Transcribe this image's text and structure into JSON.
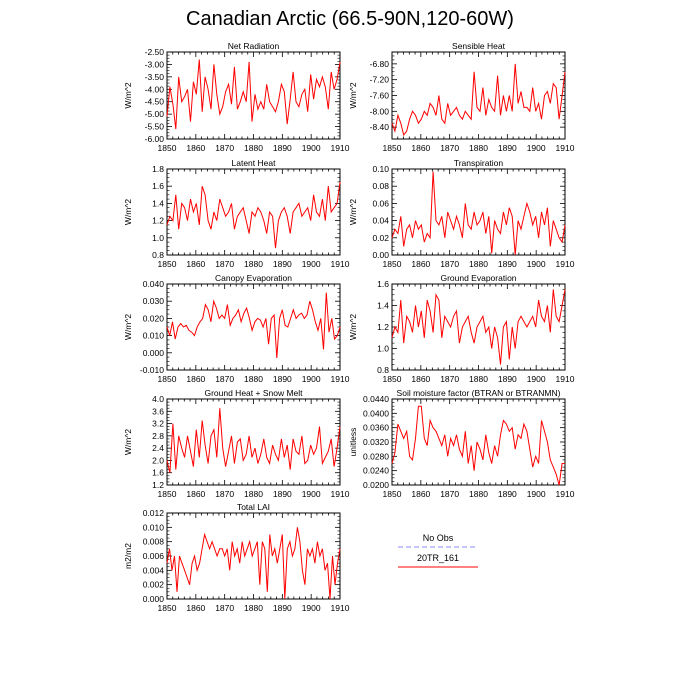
{
  "title": "Canadian Arctic (66.5-90N,120-60W)",
  "legend": {
    "entries": [
      {
        "label": "No Obs",
        "color": "#8c8cff",
        "dash": true
      },
      {
        "label": "20TR_161",
        "color": "#ff0000",
        "dash": false
      }
    ]
  },
  "chart_data": [
    {
      "type": "line",
      "title": "Net Radiation",
      "ylabel": "W/m^2",
      "xlim": [
        1850,
        1910
      ],
      "ylim": [
        -6.0,
        -2.5
      ],
      "xticks": [
        1850,
        1860,
        1870,
        1880,
        1890,
        1900,
        1910
      ],
      "yticks": [
        -6.0,
        -5.5,
        -5.0,
        -4.5,
        -4.0,
        -3.5,
        -3.0,
        -2.5
      ],
      "ytick_labels": [
        "-6.00",
        "-5.50",
        "-5.00",
        "-4.50",
        "-4.00",
        "-3.50",
        "-3.00",
        "-2.50"
      ],
      "x_start": 1850,
      "series": [
        {
          "color": "#ff0000",
          "values": [
            -5.1,
            -3.9,
            -4.6,
            -5.6,
            -3.5,
            -4.5,
            -4.3,
            -4.0,
            -5.3,
            -3.7,
            -4.2,
            -2.8,
            -4.9,
            -3.5,
            -4.0,
            -4.8,
            -3.0,
            -4.2,
            -5.0,
            -4.7,
            -4.1,
            -3.8,
            -4.6,
            -3.1,
            -4.8,
            -4.5,
            -4.1,
            -4.5,
            -2.9,
            -5.3,
            -4.2,
            -4.8,
            -4.5,
            -4.8,
            -3.8,
            -4.5,
            -4.7,
            -4.9,
            -4.5,
            -3.8,
            -4.1,
            -5.4,
            -4.4,
            -3.3,
            -4.5,
            -4.7,
            -4.2,
            -4.0,
            -4.9,
            -3.4,
            -4.4,
            -3.6,
            -3.9,
            -3.5,
            -3.9,
            -4.8,
            -3.3,
            -4.0,
            -3.6,
            -2.9
          ]
        }
      ]
    },
    {
      "type": "line",
      "title": "Sensible Heat",
      "ylabel": "W/m^2",
      "xlim": [
        1850,
        1910
      ],
      "ylim": [
        -8.7,
        -6.5
      ],
      "xticks": [
        1850,
        1860,
        1870,
        1880,
        1890,
        1900,
        1910
      ],
      "yticks": [
        -8.4,
        -8.0,
        -7.6,
        -7.2,
        -6.8
      ],
      "ytick_labels": [
        "-8.40",
        "-8.00",
        "-7.60",
        "-7.20",
        "-6.80"
      ],
      "x_start": 1850,
      "series": [
        {
          "color": "#ff0000",
          "values": [
            -8.3,
            -8.5,
            -8.1,
            -8.3,
            -8.6,
            -8.5,
            -8.2,
            -8.0,
            -8.1,
            -8.3,
            -8.2,
            -8.0,
            -8.1,
            -7.8,
            -7.9,
            -8.1,
            -7.6,
            -8.2,
            -8.3,
            -7.8,
            -8.1,
            -8.0,
            -7.9,
            -8.1,
            -8.2,
            -8.0,
            -8.1,
            -8.2,
            -7.0,
            -7.9,
            -8.0,
            -7.4,
            -8.1,
            -7.7,
            -7.9,
            -8.0,
            -7.1,
            -8.1,
            -7.6,
            -8.0,
            -7.6,
            -8.0,
            -6.8,
            -7.8,
            -7.5,
            -7.9,
            -7.9,
            -8.0,
            -7.4,
            -8.0,
            -7.8,
            -8.2,
            -7.6,
            -7.5,
            -7.8,
            -7.3,
            -7.4,
            -8.2,
            -7.6,
            -7.0
          ]
        }
      ]
    },
    {
      "type": "line",
      "title": "Latent Heat",
      "ylabel": "W/m^2",
      "xlim": [
        1850,
        1910
      ],
      "ylim": [
        0.8,
        1.8
      ],
      "xticks": [
        1850,
        1860,
        1870,
        1880,
        1890,
        1900,
        1910
      ],
      "yticks": [
        0.8,
        1.0,
        1.2,
        1.4,
        1.6,
        1.8
      ],
      "ytick_labels": [
        "0.8",
        "1.0",
        "1.2",
        "1.4",
        "1.6",
        "1.8"
      ],
      "x_start": 1850,
      "series": [
        {
          "color": "#ff0000",
          "values": [
            1.15,
            1.25,
            1.2,
            1.5,
            1.1,
            1.4,
            1.35,
            1.2,
            1.45,
            1.3,
            1.4,
            1.15,
            1.6,
            1.5,
            1.2,
            1.1,
            1.3,
            1.2,
            1.45,
            1.35,
            1.25,
            1.3,
            1.4,
            1.1,
            1.25,
            1.3,
            1.35,
            1.2,
            1.05,
            1.3,
            1.25,
            1.35,
            1.3,
            1.2,
            1.05,
            1.3,
            1.25,
            0.88,
            1.2,
            1.3,
            1.35,
            1.25,
            1.05,
            1.3,
            1.35,
            1.4,
            1.25,
            1.3,
            1.35,
            1.2,
            1.5,
            1.3,
            1.25,
            1.45,
            1.2,
            1.6,
            1.3,
            1.35,
            1.4,
            1.65
          ]
        }
      ]
    },
    {
      "type": "line",
      "title": "Transpiration",
      "ylabel": "W/m^2",
      "xlim": [
        1850,
        1910
      ],
      "ylim": [
        0.0,
        0.1
      ],
      "xticks": [
        1850,
        1860,
        1870,
        1880,
        1890,
        1900,
        1910
      ],
      "yticks": [
        0.0,
        0.02,
        0.04,
        0.06,
        0.08,
        0.1
      ],
      "ytick_labels": [
        "0.00",
        "0.02",
        "0.04",
        "0.06",
        "0.08",
        "0.10"
      ],
      "x_start": 1850,
      "series": [
        {
          "color": "#ff0000",
          "values": [
            0.02,
            0.03,
            0.025,
            0.045,
            0.01,
            0.03,
            0.035,
            0.02,
            0.04,
            0.03,
            0.035,
            0.015,
            0.025,
            0.02,
            0.097,
            0.04,
            0.035,
            0.045,
            0.02,
            0.05,
            0.04,
            0.03,
            0.045,
            0.035,
            0.02,
            0.06,
            0.035,
            0.03,
            0.05,
            0.035,
            0.04,
            0.05,
            0.025,
            0.045,
            0.002,
            0.04,
            0.03,
            0.025,
            0.05,
            0.035,
            0.055,
            0.045,
            0.0,
            0.04,
            0.03,
            0.045,
            0.06,
            0.05,
            0.035,
            0.045,
            0.02,
            0.05,
            0.035,
            0.055,
            0.01,
            0.04,
            0.03,
            0.02,
            0.015,
            0.035
          ]
        }
      ]
    },
    {
      "type": "line",
      "title": "Canopy Evaporation",
      "ylabel": "W/m^2",
      "xlim": [
        1850,
        1910
      ],
      "ylim": [
        -0.01,
        0.04
      ],
      "xticks": [
        1850,
        1860,
        1870,
        1880,
        1890,
        1900,
        1910
      ],
      "yticks": [
        -0.01,
        0.0,
        0.01,
        0.02,
        0.03,
        0.04
      ],
      "ytick_labels": [
        "-0.010",
        "0.000",
        "0.010",
        "0.020",
        "0.030",
        "0.040"
      ],
      "x_start": 1850,
      "series": [
        {
          "color": "#ff0000",
          "values": [
            0.015,
            0.01,
            0.018,
            0.008,
            0.015,
            0.017,
            0.015,
            0.016,
            0.013,
            0.012,
            0.01,
            0.015,
            0.018,
            0.02,
            0.028,
            0.025,
            0.018,
            0.03,
            0.026,
            0.02,
            0.022,
            0.02,
            0.028,
            0.016,
            0.02,
            0.022,
            0.025,
            0.018,
            0.023,
            0.026,
            0.02,
            0.013,
            0.018,
            0.02,
            0.019,
            0.015,
            0.02,
            0.005,
            0.02,
            0.022,
            -0.003,
            0.02,
            0.025,
            0.016,
            0.015,
            0.02,
            0.025,
            0.02,
            0.022,
            0.023,
            0.02,
            0.022,
            0.03,
            0.025,
            0.018,
            0.013,
            0.02,
            0.002,
            0.035,
            0.012,
            0.02,
            0.008,
            0.01,
            0.015
          ]
        }
      ]
    },
    {
      "type": "line",
      "title": "Ground Evaporation",
      "ylabel": "W/m^2",
      "xlim": [
        1850,
        1910
      ],
      "ylim": [
        0.8,
        1.6
      ],
      "xticks": [
        1850,
        1860,
        1870,
        1880,
        1890,
        1900,
        1910
      ],
      "yticks": [
        0.8,
        1.0,
        1.2,
        1.4,
        1.6
      ],
      "ytick_labels": [
        "0.8",
        "1.0",
        "1.2",
        "1.4",
        "1.6"
      ],
      "x_start": 1850,
      "series": [
        {
          "color": "#ff0000",
          "values": [
            1.1,
            1.2,
            1.15,
            1.45,
            1.05,
            1.3,
            1.25,
            1.15,
            1.4,
            1.2,
            1.35,
            1.1,
            1.45,
            1.35,
            1.15,
            1.5,
            1.45,
            1.1,
            1.3,
            1.25,
            1.2,
            1.3,
            1.35,
            1.05,
            1.2,
            1.25,
            1.3,
            1.15,
            1.05,
            1.2,
            1.25,
            1.3,
            1.15,
            1.2,
            1.0,
            1.2,
            1.1,
            0.85,
            1.2,
            1.25,
            0.9,
            1.2,
            1.0,
            1.25,
            1.3,
            1.25,
            1.2,
            1.25,
            1.3,
            1.2,
            1.45,
            1.3,
            1.25,
            1.4,
            1.15,
            1.55,
            1.3,
            1.25,
            1.4,
            1.55
          ]
        }
      ]
    },
    {
      "type": "line",
      "title": "Ground Heat + Snow Melt",
      "ylabel": "W/m^2",
      "xlim": [
        1850,
        1910
      ],
      "ylim": [
        1.2,
        4.0
      ],
      "xticks": [
        1850,
        1860,
        1870,
        1880,
        1890,
        1900,
        1910
      ],
      "yticks": [
        1.2,
        1.6,
        2.0,
        2.4,
        2.8,
        3.2,
        3.6,
        4.0
      ],
      "ytick_labels": [
        "1.2",
        "1.6",
        "2.0",
        "2.4",
        "2.8",
        "3.2",
        "3.6",
        "4.0"
      ],
      "x_start": 1850,
      "series": [
        {
          "color": "#ff0000",
          "values": [
            2.0,
            1.6,
            3.2,
            1.7,
            2.8,
            2.4,
            2.1,
            2.8,
            2.3,
            1.8,
            3.0,
            2.1,
            3.3,
            2.5,
            1.9,
            2.8,
            3.0,
            2.1,
            3.7,
            2.4,
            1.8,
            2.3,
            2.8,
            1.9,
            2.6,
            2.7,
            2.0,
            2.2,
            2.8,
            2.1,
            2.4,
            1.9,
            2.2,
            2.7,
            2.1,
            1.9,
            2.5,
            2.2,
            2.0,
            2.7,
            2.1,
            2.5,
            1.7,
            2.7,
            2.3,
            2.2,
            2.8,
            1.9,
            2.0,
            2.5,
            2.2,
            2.4,
            3.1,
            1.9,
            2.1,
            2.3,
            2.7,
            1.8,
            2.4,
            3.1
          ]
        }
      ]
    },
    {
      "type": "line",
      "title": "Soil moisture factor (BTRAN or BTRANMN)",
      "ylabel": "unitless",
      "xlim": [
        1850,
        1910
      ],
      "ylim": [
        0.02,
        0.044
      ],
      "xticks": [
        1850,
        1860,
        1870,
        1880,
        1890,
        1900,
        1910
      ],
      "yticks": [
        0.02,
        0.024,
        0.028,
        0.032,
        0.036,
        0.04,
        0.044
      ],
      "ytick_labels": [
        "0.0200",
        "0.0240",
        "0.0280",
        "0.0320",
        "0.0360",
        "0.0400",
        "0.0440"
      ],
      "x_start": 1850,
      "series": [
        {
          "color": "#ff0000",
          "values": [
            0.026,
            0.029,
            0.037,
            0.035,
            0.033,
            0.035,
            0.028,
            0.027,
            0.033,
            0.042,
            0.042,
            0.033,
            0.031,
            0.038,
            0.036,
            0.035,
            0.033,
            0.031,
            0.034,
            0.028,
            0.033,
            0.031,
            0.034,
            0.03,
            0.028,
            0.035,
            0.026,
            0.031,
            0.024,
            0.032,
            0.03,
            0.027,
            0.034,
            0.029,
            0.026,
            0.031,
            0.028,
            0.034,
            0.038,
            0.037,
            0.035,
            0.036,
            0.03,
            0.034,
            0.033,
            0.037,
            0.035,
            0.03,
            0.025,
            0.028,
            0.026,
            0.038,
            0.035,
            0.032,
            0.027,
            0.025,
            0.023,
            0.02,
            0.026,
            0.026
          ]
        }
      ]
    },
    {
      "type": "line",
      "title": "Total LAI",
      "ylabel": "m2/m2",
      "xlim": [
        1850,
        1910
      ],
      "ylim": [
        0.0,
        0.012
      ],
      "xticks": [
        1850,
        1860,
        1870,
        1880,
        1890,
        1900,
        1910
      ],
      "yticks": [
        0.0,
        0.002,
        0.004,
        0.006,
        0.008,
        0.01,
        0.012
      ],
      "ytick_labels": [
        "0.000",
        "0.002",
        "0.004",
        "0.006",
        "0.008",
        "0.010",
        "0.012"
      ],
      "x_start": 1850,
      "series": [
        {
          "color": "#ff0000",
          "values": [
            0.005,
            0.007,
            0.004,
            0.006,
            0.001,
            0.006,
            0.005,
            0.004,
            0.003,
            0.002,
            0.005,
            0.006,
            0.004,
            0.005,
            0.007,
            0.009,
            0.008,
            0.007,
            0.008,
            0.007,
            0.006,
            0.007,
            0.007,
            0.006,
            0.007,
            0.004,
            0.008,
            0.006,
            0.007,
            0.005,
            0.008,
            0.006,
            0.007,
            0.008,
            0.006,
            0.007,
            0.008,
            0.002,
            0.008,
            0.007,
            0.001,
            0.009,
            0.006,
            0.007,
            0.005,
            0.007,
            0.009,
            0.0,
            0.007,
            0.008,
            0.006,
            0.007,
            0.01,
            0.008,
            0.004,
            0.002,
            0.007,
            0.006,
            0.007,
            0.005,
            0.008,
            0.006,
            0.007,
            0.004,
            0.005,
            0.0,
            0.006,
            0.002,
            0.005,
            0.007
          ]
        }
      ]
    }
  ]
}
